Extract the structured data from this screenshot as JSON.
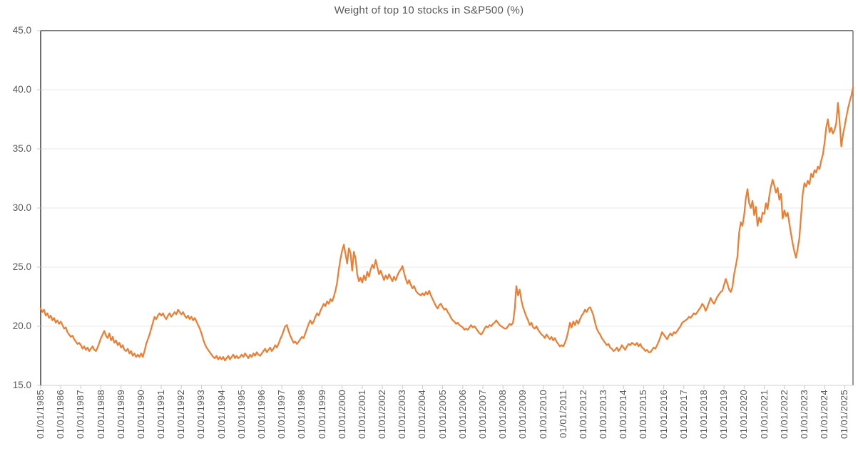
{
  "title": "Weight of top 10 stocks in S&P500 (%)",
  "colors": {
    "line": "#ED7D31",
    "text": "#595959",
    "gridline": "#E8E8E8",
    "y_axis_line": "#1f1f1f",
    "x_axis_line": "#D9D9D9",
    "plot_border": "#7F7F7F",
    "tick": "#C9C9C9",
    "background": "#FFFFFF"
  },
  "y_axis": {
    "tick_labels": [
      "45.0",
      "40.0",
      "35.0",
      "30.0",
      "25.0",
      "20.0",
      "15.0"
    ],
    "tick_values": [
      45,
      40,
      35,
      30,
      25,
      20,
      15
    ],
    "min": 15,
    "max": 45
  },
  "x_axis": {
    "tick_labels": [
      "01/01/1985",
      "01/01/1986",
      "01/01/1987",
      "01/01/1988",
      "01/01/1989",
      "01/01/1990",
      "01/01/1991",
      "01/01/1992",
      "01/01/1993",
      "01/01/1994",
      "01/01/1995",
      "01/01/1996",
      "01/01/1997",
      "01/01/1998",
      "01/01/1999",
      "01/01/2000",
      "01/01/2001",
      "01/01/2002",
      "01/01/2003",
      "01/01/2004",
      "01/01/2005",
      "01/01/2006",
      "01/01/2007",
      "01/01/2008",
      "01/01/2009",
      "01/01/2010",
      "01/01/2011",
      "01/01/2012",
      "01/01/2013",
      "01/01/2014",
      "01/01/2015",
      "01/01/2016",
      "01/01/2017",
      "01/01/2018",
      "01/01/2019",
      "01/01/2020",
      "01/01/2021",
      "01/01/2022",
      "01/01/2023",
      "01/01/2024",
      "01/01/2025"
    ],
    "points_per_label": 12
  },
  "chart_data": {
    "type": "line",
    "title": "Weight of top 10 stocks in S&P500 (%)",
    "xlabel": "",
    "ylabel": "",
    "ylim": [
      15,
      45
    ],
    "grid": "horizontal",
    "legend": "none",
    "frequency": "monthly",
    "x_start": "01/01/1985",
    "x_end": "06/01/2025",
    "monthly_values_by_year": {
      "1985": [
        21.5,
        21.2,
        21.4,
        20.9,
        21.1,
        20.7,
        20.9,
        20.5,
        20.7,
        20.3,
        20.5,
        20.2
      ],
      "1986": [
        20.4,
        20.1,
        19.8,
        19.9,
        19.5,
        19.3,
        19.1,
        19.2,
        18.9,
        18.7,
        18.5,
        18.6
      ],
      "1987": [
        18.4,
        18.1,
        18.3,
        18.0,
        18.2,
        17.9,
        18.1,
        18.3,
        18.0,
        17.9,
        18.2,
        18.6
      ],
      "1988": [
        19.0,
        19.3,
        19.6,
        19.2,
        19.0,
        19.4,
        18.8,
        19.1,
        18.6,
        18.8,
        18.4,
        18.6
      ],
      "1989": [
        18.2,
        18.4,
        18.0,
        17.9,
        18.1,
        17.7,
        17.9,
        17.5,
        17.7,
        17.4,
        17.6,
        17.4
      ],
      "1990": [
        17.7,
        17.4,
        17.9,
        18.5,
        18.9,
        19.3,
        19.8,
        20.3,
        20.8,
        20.6,
        20.9,
        21.1
      ],
      "1991": [
        20.9,
        21.1,
        20.8,
        20.6,
        20.9,
        21.1,
        20.8,
        21.0,
        21.2,
        21.0,
        21.4,
        21.2
      ],
      "1992": [
        21.0,
        21.2,
        20.9,
        20.7,
        20.9,
        20.6,
        20.8,
        20.5,
        20.7,
        20.4,
        20.1,
        19.8
      ],
      "1993": [
        19.4,
        18.9,
        18.5,
        18.2,
        18.0,
        17.8,
        17.6,
        17.4,
        17.3,
        17.5,
        17.2,
        17.4
      ],
      "1994": [
        17.2,
        17.4,
        17.1,
        17.3,
        17.5,
        17.2,
        17.4,
        17.6,
        17.3,
        17.5,
        17.3,
        17.4
      ],
      "1995": [
        17.6,
        17.4,
        17.7,
        17.5,
        17.3,
        17.6,
        17.4,
        17.7,
        17.5,
        17.8,
        17.6,
        17.5
      ],
      "1996": [
        17.7,
        17.9,
        18.1,
        17.8,
        18.0,
        18.2,
        17.9,
        18.1,
        18.4,
        18.2,
        18.5,
        18.9
      ],
      "1997": [
        19.2,
        19.6,
        20.0,
        20.1,
        19.6,
        19.2,
        18.9,
        18.6,
        18.7,
        18.5,
        18.7,
        18.9
      ],
      "1998": [
        19.1,
        19.0,
        19.4,
        19.8,
        20.2,
        20.5,
        20.2,
        20.4,
        20.8,
        21.1,
        20.9,
        21.3
      ],
      "1999": [
        21.6,
        21.9,
        21.7,
        22.1,
        21.9,
        22.3,
        22.1,
        22.5,
        23.0,
        23.7,
        24.8,
        25.7
      ],
      "2000": [
        26.4,
        26.9,
        26.1,
        25.3,
        26.6,
        26.2,
        24.7,
        26.3,
        25.7,
        24.4,
        23.8,
        24.1
      ],
      "2001": [
        23.7,
        24.3,
        23.9,
        24.6,
        24.2,
        24.8,
        25.2,
        24.9,
        25.6,
        25.0,
        24.4,
        24.7
      ],
      "2002": [
        24.3,
        23.9,
        24.3,
        24.0,
        24.4,
        24.1,
        23.8,
        24.2,
        23.9,
        24.3,
        24.6,
        24.8
      ],
      "2003": [
        25.1,
        24.5,
        24.0,
        23.6,
        23.9,
        23.5,
        23.2,
        23.4,
        23.0,
        22.8,
        22.7,
        22.6
      ],
      "2004": [
        22.8,
        22.6,
        22.9,
        22.7,
        23.0,
        22.6,
        22.3,
        22.0,
        21.7,
        21.5,
        21.8,
        21.9
      ],
      "2005": [
        21.6,
        21.4,
        21.5,
        21.2,
        21.0,
        20.7,
        20.5,
        20.4,
        20.2,
        20.3,
        20.1,
        20.0
      ],
      "2006": [
        19.9,
        19.7,
        19.8,
        19.7,
        19.9,
        20.1,
        19.9,
        20.0,
        19.8,
        19.6,
        19.4,
        19.3
      ],
      "2007": [
        19.5,
        19.8,
        20.0,
        19.9,
        20.1,
        20.0,
        20.2,
        20.3,
        20.5,
        20.3,
        20.1,
        20.0
      ],
      "2008": [
        19.9,
        19.8,
        19.8,
        20.0,
        20.2,
        20.1,
        20.3,
        21.4,
        23.4,
        22.6,
        23.1,
        22.2
      ],
      "2009": [
        21.6,
        21.2,
        20.8,
        20.5,
        20.1,
        20.3,
        19.9,
        19.8,
        20.0,
        19.7,
        19.5,
        19.3
      ],
      "2010": [
        19.2,
        19.0,
        19.3,
        19.1,
        18.9,
        19.1,
        18.8,
        19.0,
        18.7,
        18.5,
        18.3,
        18.4
      ],
      "2011": [
        18.3,
        18.6,
        19.0,
        19.6,
        20.3,
        19.9,
        20.4,
        20.1,
        20.5,
        20.2,
        20.6,
        20.9
      ],
      "2012": [
        21.1,
        21.4,
        21.2,
        21.5,
        21.6,
        21.3,
        20.9,
        20.3,
        19.8,
        19.5,
        19.3,
        19.0
      ],
      "2013": [
        18.8,
        18.6,
        18.4,
        18.5,
        18.2,
        18.1,
        17.9,
        18.0,
        18.2,
        17.9,
        18.1,
        18.4
      ],
      "2014": [
        18.2,
        18.0,
        18.3,
        18.5,
        18.4,
        18.6,
        18.5,
        18.4,
        18.6,
        18.3,
        18.5,
        18.2
      ],
      "2015": [
        18.1,
        17.9,
        18.0,
        17.8,
        17.8,
        18.0,
        18.2,
        18.1,
        18.4,
        18.7,
        19.1,
        19.5
      ],
      "2016": [
        19.3,
        19.1,
        18.9,
        19.2,
        19.4,
        19.2,
        19.5,
        19.4,
        19.6,
        19.8,
        20.0,
        20.3
      ],
      "2017": [
        20.4,
        20.5,
        20.6,
        20.8,
        20.7,
        20.9,
        21.1,
        21.0,
        21.2,
        21.4,
        21.6,
        21.9
      ],
      "2018": [
        21.7,
        21.3,
        21.6,
        22.0,
        22.4,
        22.1,
        21.9,
        22.2,
        22.5,
        22.7,
        22.9,
        23.0
      ],
      "2019": [
        23.5,
        24.0,
        23.6,
        23.1,
        22.9,
        23.3,
        24.4,
        25.1,
        25.9,
        27.9,
        28.8,
        28.5
      ],
      "2020": [
        29.4,
        30.8,
        31.6,
        30.4,
        30.0,
        30.6,
        29.4,
        30.1,
        28.5,
        29.2,
        28.8,
        29.6
      ],
      "2021": [
        29.5,
        30.4,
        29.9,
        31.0,
        31.8,
        32.4,
        31.9,
        31.3,
        31.7,
        30.7,
        31.2,
        29.1
      ],
      "2022": [
        29.8,
        29.3,
        29.6,
        28.7,
        27.8,
        27.0,
        26.3,
        25.8,
        26.6,
        27.5,
        29.4,
        31.2
      ],
      "2023": [
        32.1,
        31.8,
        32.3,
        32.0,
        32.9,
        32.6,
        33.2,
        33.0,
        33.5,
        33.3,
        34.0,
        34.5
      ],
      "2024": [
        35.5,
        36.8,
        37.5,
        36.4,
        36.8,
        36.3,
        36.6,
        37.2,
        38.9,
        37.3,
        35.2,
        36.2
      ],
      "2025": [
        36.9,
        37.7,
        38.4,
        39.0,
        39.5,
        40.2
      ]
    }
  }
}
